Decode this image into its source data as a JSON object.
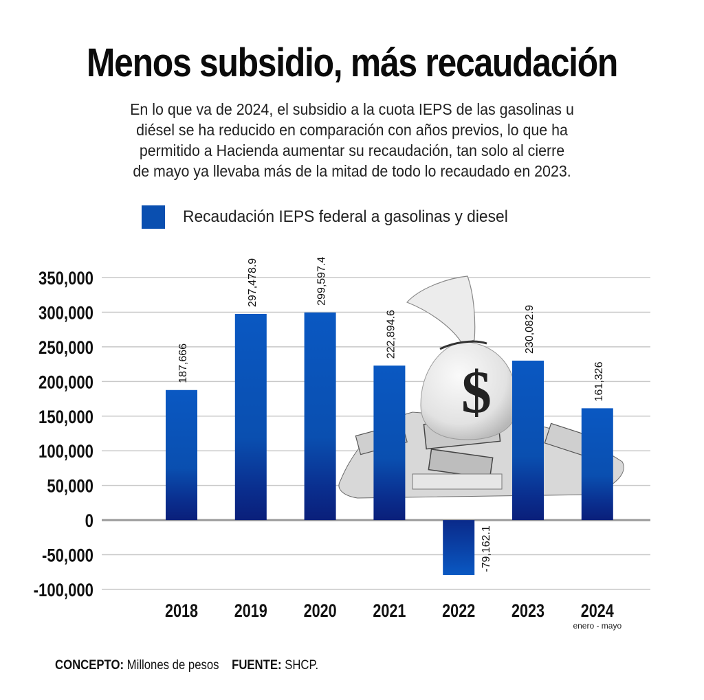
{
  "header": {
    "title": "Menos subsidio, más recaudación",
    "subtitle_lines": [
      "En lo que va de 2024, el subsidio a la cuota IEPS de las gasolinas u",
      "diésel se ha reducido en comparación con años previos, lo que ha",
      "permitido a Hacienda aumentar su recaudación, tan solo al cierre",
      "de mayo ya llevaba más de la mitad de todo lo recaudado en 2023."
    ]
  },
  "legend": {
    "label": "Recaudación IEPS federal a gasolinas y diesel",
    "color": "#0a4fb0"
  },
  "illustration": {
    "icon": "money-bag-icon",
    "glyph": "$"
  },
  "footer": {
    "concepto_label": "CONCEPTO:",
    "concepto_value": "Millones de pesos",
    "fuente_label": "FUENTE:",
    "fuente_value": "SHCP."
  },
  "chart_data": {
    "type": "bar",
    "title": "Menos subsidio, más recaudación",
    "xlabel": "",
    "ylabel": "Millones de pesos",
    "categories": [
      "2018",
      "2019",
      "2020",
      "2021",
      "2022",
      "2023",
      "2024"
    ],
    "category_sublabels": [
      "",
      "",
      "",
      "",
      "",
      "",
      "enero - mayo"
    ],
    "series": [
      {
        "name": "Recaudación IEPS federal a gasolinas y diesel",
        "values": [
          187666,
          297478.9,
          299597.4,
          222894.6,
          -79162.1,
          230082.9,
          161326
        ],
        "data_labels": [
          "187,666",
          "297,478.9",
          "299,597.4",
          "222,894.6",
          "-79,162.1",
          "230,082.9",
          "161,326"
        ],
        "color_top": "#0a58c2",
        "color_bottom": "#0a1f7a"
      }
    ],
    "ylim": [
      -100000,
      350000
    ],
    "yticks": [
      350000,
      300000,
      250000,
      200000,
      150000,
      100000,
      50000,
      0,
      -50000,
      -100000
    ],
    "ytick_labels": [
      "350,000",
      "300,000",
      "250,000",
      "200,000",
      "150,000",
      "100,000",
      "50,000",
      "0",
      "-50,000",
      "-100,000"
    ],
    "grid": true,
    "legend_position": "top"
  }
}
